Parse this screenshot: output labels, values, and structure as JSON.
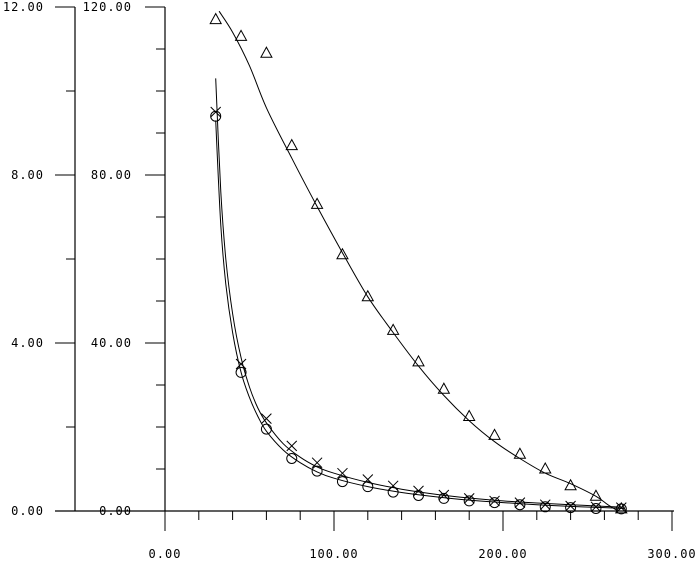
{
  "chart_data": {
    "type": "scatter",
    "title": "",
    "xlabel": "",
    "ylabel": "",
    "grid": false,
    "xlim": [
      0,
      300
    ],
    "x_ticks": [
      "0.00",
      "100.00",
      "200.00",
      "300.00"
    ],
    "left_axis": {
      "ylim": [
        0,
        12
      ],
      "ticks": [
        "0.00",
        "4.00",
        "8.00",
        "12.00"
      ]
    },
    "right_axis": {
      "ylim": [
        0,
        120
      ],
      "ticks": [
        "0.00",
        "40.00",
        "80.00",
        "120.00"
      ]
    },
    "series": [
      {
        "marker": "triangle",
        "axis": "right",
        "x": [
          30,
          45,
          60,
          75,
          90,
          105,
          120,
          135,
          150,
          165,
          180,
          195,
          210,
          225,
          240,
          255,
          270
        ],
        "y": [
          117,
          113,
          109,
          87,
          73,
          61,
          51,
          43,
          35.5,
          29,
          22.5,
          18,
          13.5,
          10,
          6,
          3.5,
          0.5
        ],
        "fit": {
          "x": [
            32,
            40,
            50,
            60,
            75,
            90,
            105,
            120,
            135,
            150,
            165,
            180,
            195,
            210,
            225,
            240,
            255,
            262,
            268
          ],
          "y": [
            119,
            114,
            106,
            96,
            84,
            72.5,
            61.5,
            51,
            42.5,
            34.5,
            27.5,
            21.5,
            16.5,
            12.5,
            9,
            6.5,
            3.5,
            1.5,
            0
          ]
        }
      },
      {
        "marker": "cross",
        "axis": "left",
        "x": [
          30,
          45,
          60,
          75,
          90,
          105,
          120,
          135,
          150,
          165,
          180,
          195,
          210,
          225,
          240,
          255,
          270
        ],
        "y": [
          9.5,
          3.5,
          2.2,
          1.55,
          1.15,
          0.9,
          0.75,
          0.6,
          0.48,
          0.38,
          0.3,
          0.24,
          0.2,
          0.15,
          0.12,
          0.1,
          0.08
        ],
        "fit": {
          "x": [
            30,
            33,
            36,
            40,
            45,
            50,
            55,
            60,
            70,
            80,
            90,
            100,
            120,
            140,
            160,
            180,
            200,
            220,
            240,
            260,
            272
          ],
          "y": [
            10.3,
            7.6,
            6.0,
            4.7,
            3.65,
            2.95,
            2.45,
            2.1,
            1.6,
            1.28,
            1.05,
            0.9,
            0.68,
            0.52,
            0.4,
            0.31,
            0.24,
            0.19,
            0.15,
            0.11,
            0.09
          ]
        }
      },
      {
        "marker": "circle",
        "axis": "left",
        "x": [
          30,
          45,
          60,
          75,
          90,
          105,
          120,
          135,
          150,
          165,
          180,
          195,
          210,
          225,
          240,
          255,
          270
        ],
        "y": [
          9.4,
          3.3,
          1.95,
          1.25,
          0.95,
          0.7,
          0.58,
          0.45,
          0.37,
          0.3,
          0.24,
          0.2,
          0.15,
          0.1,
          0.08,
          0.06,
          0.05
        ],
        "fit": {
          "x": [
            30,
            33,
            36,
            40,
            45,
            50,
            55,
            60,
            70,
            80,
            90,
            100,
            120,
            140,
            160,
            180,
            200,
            220,
            240,
            260,
            272
          ],
          "y": [
            9.3,
            6.8,
            5.4,
            4.25,
            3.3,
            2.7,
            2.25,
            1.9,
            1.45,
            1.15,
            0.93,
            0.78,
            0.58,
            0.44,
            0.34,
            0.26,
            0.2,
            0.15,
            0.11,
            0.08,
            0.06
          ]
        }
      }
    ]
  }
}
